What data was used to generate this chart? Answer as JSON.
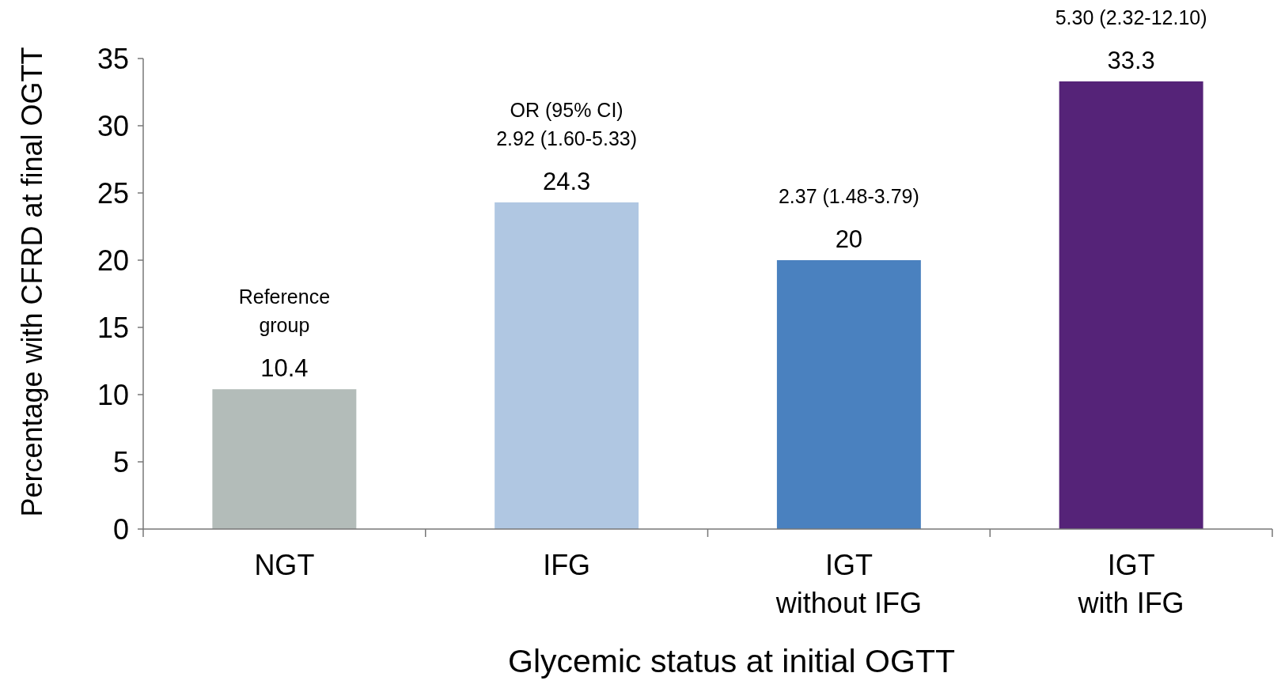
{
  "chart_data": {
    "type": "bar",
    "xlabel": "Glycemic status at initial OGTT",
    "ylabel": "Percentage with CFRD at final OGTT",
    "categories": [
      "NGT",
      "IFG",
      "IGT\nwithout IFG",
      "IGT\nwith IFG"
    ],
    "values": [
      10.4,
      24.3,
      20,
      33.3
    ],
    "colors": [
      "#b3bcb9",
      "#b0c7e2",
      "#4a81bf",
      "#552378"
    ],
    "ylim": [
      0,
      35
    ],
    "yticks": [
      0,
      5,
      10,
      15,
      20,
      25,
      30,
      35
    ],
    "grid": false,
    "data_labels": true,
    "annotations": [
      {
        "text": "Reference\ngroup",
        "x": "NGT",
        "y": 10.4
      },
      {
        "text": "OR (95% CI)\n2.92 (1.60-5.33)",
        "x": "IFG",
        "y": 24.3
      },
      {
        "text": "2.37 (1.48-3.79)",
        "x": "IGT\nwithout IFG",
        "y": 20
      },
      {
        "text": "5.30 (2.32-12.10)",
        "x": "IGT\nwith IFG",
        "y": 33.3
      }
    ]
  }
}
